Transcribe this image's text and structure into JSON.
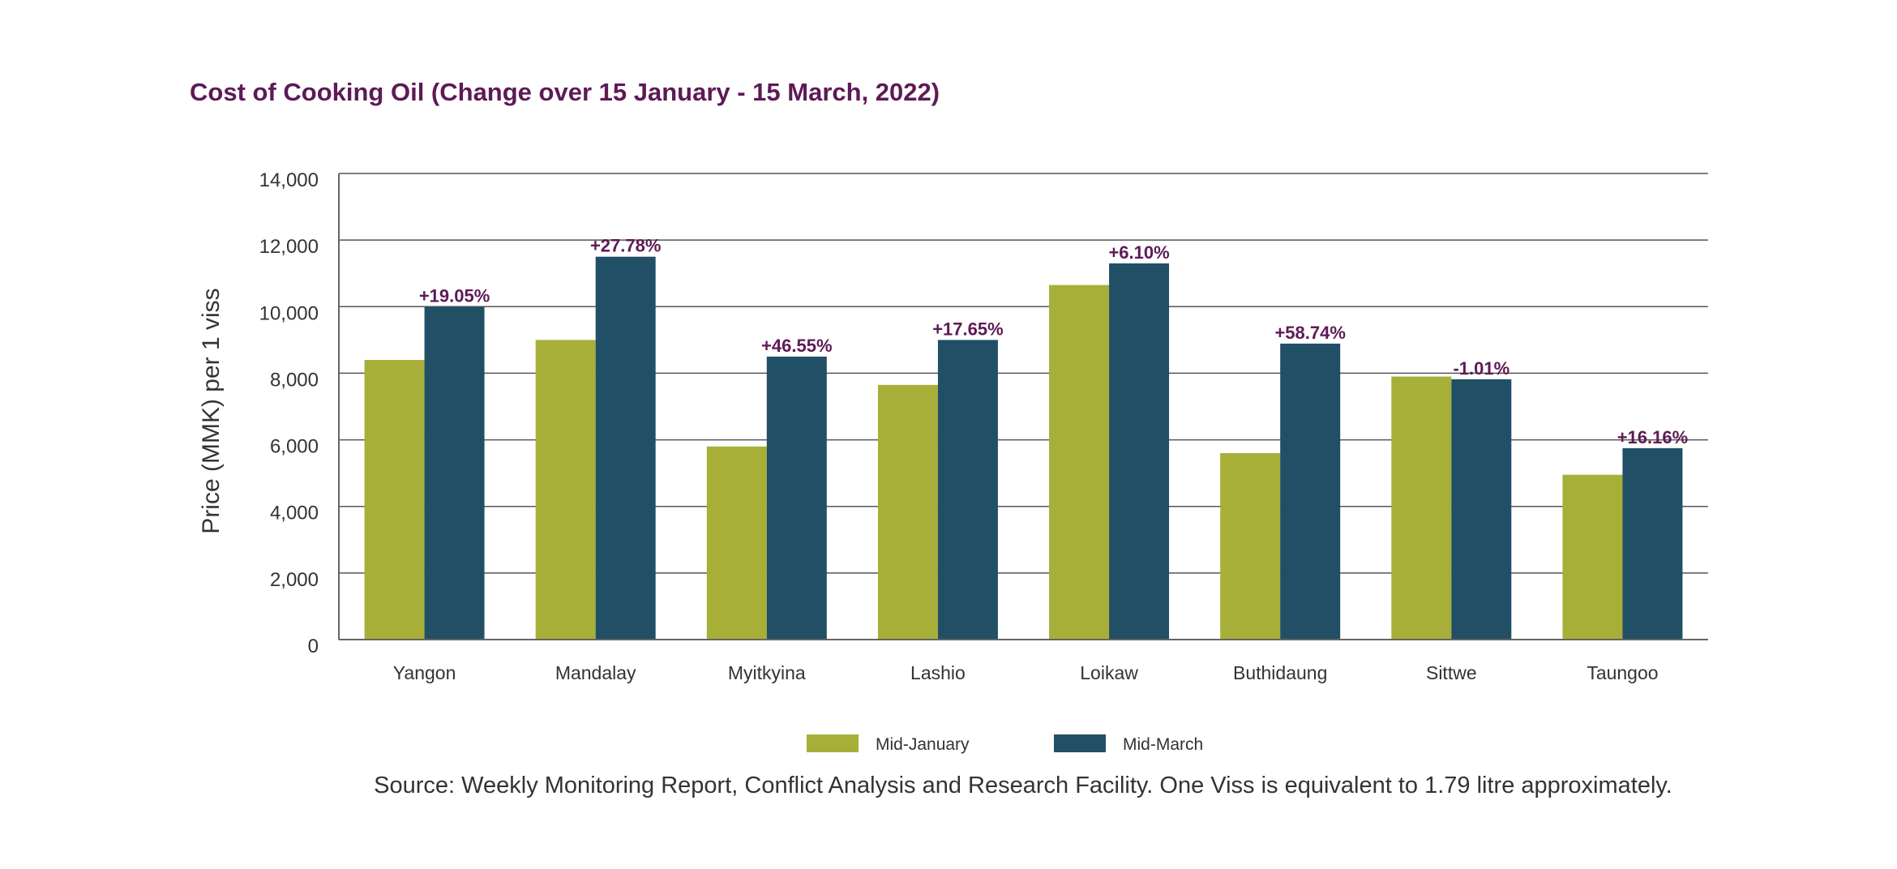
{
  "chart_data": {
    "type": "bar",
    "title": "Cost of Cooking Oil (Change over 15 January - 15 March, 2022)",
    "xlabel": "",
    "ylabel": "Price (MMK) per 1 viss",
    "ylim": [
      0,
      14000
    ],
    "yticks": [
      0,
      2000,
      4000,
      6000,
      8000,
      10000,
      12000,
      14000
    ],
    "ytick_labels": [
      "0",
      "2,000",
      "4,000",
      "6,000",
      "8,000",
      "10,000",
      "12,000",
      "14,000"
    ],
    "grid": true,
    "legend_position": "bottom",
    "categories": [
      "Yangon",
      "Mandalay",
      "Myitkyina",
      "Lashio",
      "Loikaw",
      "Buthidaung",
      "Sittwe",
      "Taungoo"
    ],
    "series": [
      {
        "name": "Mid-January",
        "color": "#A8AF38",
        "values": [
          8400,
          9000,
          5800,
          7650,
          10650,
          5600,
          7900,
          4950
        ]
      },
      {
        "name": "Mid-March",
        "color": "#214F66",
        "values": [
          10000,
          11500,
          8500,
          9000,
          11300,
          8890,
          7820,
          5750
        ]
      }
    ],
    "annotations": [
      "+19.05%",
      "+27.78%",
      "+46.55%",
      "+17.65%",
      "+6.10%",
      "+58.74%",
      "-1.01%",
      "+16.16%"
    ],
    "annotation_color": "#5E1A55",
    "source": "Source: Weekly Monitoring Report, Conflict Analysis and Research Facility. One Viss is equivalent to 1.79 litre approximately."
  }
}
